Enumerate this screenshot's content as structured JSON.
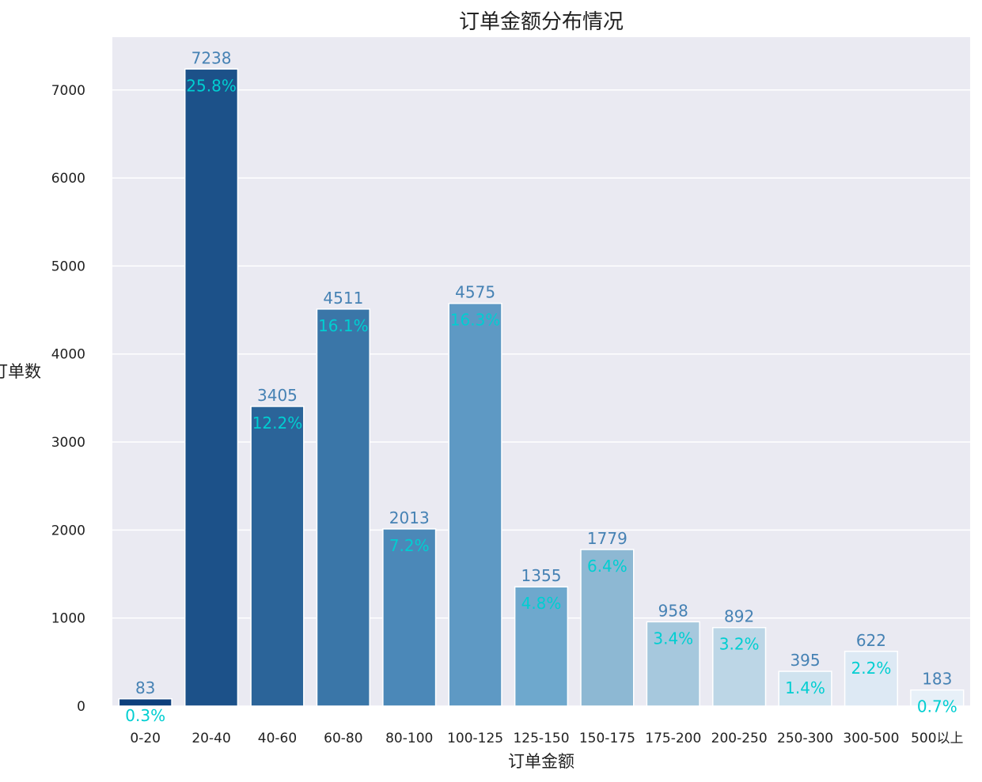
{
  "chart_data": {
    "type": "bar",
    "title": "订单金额分布情况",
    "xlabel": "订单金额",
    "ylabel": "订单数",
    "categories": [
      "0-20",
      "20-40",
      "40-60",
      "60-80",
      "80-100",
      "100-125",
      "125-150",
      "150-175",
      "175-200",
      "200-250",
      "250-300",
      "300-500",
      "500以上"
    ],
    "values": [
      83,
      7238,
      3405,
      4511,
      2013,
      4575,
      1355,
      1779,
      958,
      892,
      395,
      622,
      183
    ],
    "percent_labels": [
      "0.3%",
      "25.8%",
      "12.2%",
      "16.1%",
      "7.2%",
      "16.3%",
      "4.8%",
      "6.4%",
      "3.4%",
      "3.2%",
      "1.4%",
      "2.2%",
      "0.7%"
    ],
    "yticks": [
      0,
      1000,
      2000,
      3000,
      4000,
      5000,
      6000,
      7000
    ],
    "ylim": [
      0,
      7600
    ],
    "grid": true,
    "colors": {
      "background": "#eaeaf2",
      "grid": "#ffffff",
      "value_label": "#4682b4",
      "percent_label": "#00ced1",
      "bars": [
        "#0d3f7c",
        "#1c5189",
        "#2b6499",
        "#3a76a8",
        "#4b88b8",
        "#5e99c4",
        "#6ea8cd",
        "#8db8d3",
        "#a6c8dd",
        "#bcd6e6",
        "#d0e3ef",
        "#dde9f4",
        "#e7f0f8"
      ]
    }
  }
}
